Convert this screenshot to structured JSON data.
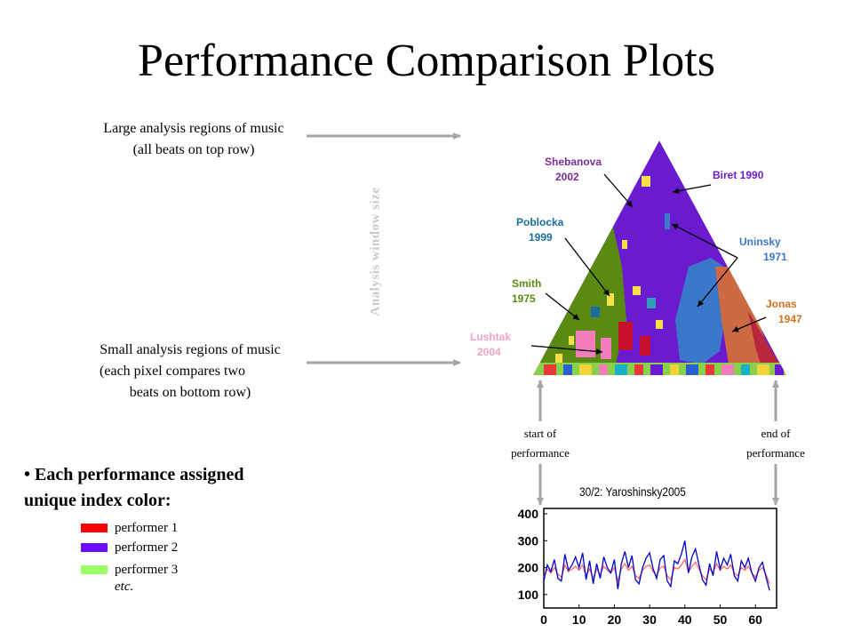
{
  "title": "Performance Comparison Plots",
  "left_descriptions": {
    "large_line1": "Large analysis regions of music",
    "large_line2": "(all beats on top row)",
    "small_line1": "Small analysis regions of music",
    "small_line2": "(each pixel compares two",
    "small_line3": "beats on bottom row)"
  },
  "axis_label": "Analysis window size",
  "performers": {
    "shebanova_name": "Shebanova",
    "shebanova_year": "2002",
    "biret": "Biret 1990",
    "poblocka_name": "Poblocka",
    "poblocka_year": "1999",
    "uninsky_name": "Uninsky",
    "uninsky_year": "1971",
    "smith_name": "Smith",
    "smith_year": "1975",
    "jonas_name": "Jonas",
    "jonas_year": "1947",
    "lushtak_name": "Lushtak",
    "lushtak_year": "2004"
  },
  "performer_colors": {
    "shebanova": "#7a2d96",
    "biret": "#6a1bd0",
    "poblocka": "#1a6e9e",
    "uninsky": "#3b78c9",
    "smith": "#5a8a12",
    "jonas": "#d2711c",
    "lushtak": "#f4a0c8"
  },
  "captions": {
    "start_line1": "start of",
    "start_line2": "performance",
    "end_line1": "end of",
    "end_line2": "performance"
  },
  "legend": {
    "heading_line1": "• Each performance assigned",
    "heading_line2": "unique index color:",
    "items": [
      {
        "label": "performer 1",
        "color": "#ff0000"
      },
      {
        "label": "performer 2",
        "color": "#6a0dff"
      },
      {
        "label": "performer 3",
        "color": "#99ff66"
      }
    ],
    "etc": "etc."
  },
  "chart_data": {
    "type": "line",
    "title": "30/2: Yaroshinsky2005",
    "xlabel": "",
    "ylabel": "",
    "xlim": [
      0,
      66
    ],
    "ylim": [
      50,
      420
    ],
    "x_ticks": [
      0,
      10,
      20,
      30,
      40,
      50,
      60
    ],
    "y_ticks": [
      100,
      200,
      300,
      400
    ],
    "grid": false,
    "series": [
      {
        "color": "#0000cc",
        "x": [
          0,
          1,
          2,
          3,
          4,
          5,
          6,
          7,
          8,
          9,
          10,
          11,
          12,
          13,
          14,
          15,
          16,
          17,
          18,
          19,
          20,
          21,
          22,
          23,
          24,
          25,
          26,
          27,
          28,
          29,
          30,
          31,
          32,
          33,
          34,
          35,
          36,
          37,
          38,
          39,
          40,
          41,
          42,
          43,
          44,
          45,
          46,
          47,
          48,
          49,
          50,
          51,
          52,
          53,
          54,
          55,
          56,
          57,
          58,
          59,
          60,
          61,
          62,
          63,
          64
        ],
        "values": [
          150,
          210,
          185,
          230,
          160,
          150,
          250,
          190,
          210,
          240,
          200,
          255,
          155,
          225,
          140,
          215,
          160,
          240,
          200,
          180,
          230,
          120,
          215,
          260,
          200,
          245,
          155,
          140,
          200,
          235,
          255,
          195,
          160,
          230,
          245,
          150,
          130,
          225,
          215,
          250,
          300,
          180,
          240,
          270,
          210,
          155,
          135,
          215,
          170,
          260,
          195,
          235,
          210,
          250,
          170,
          150,
          225,
          200,
          235,
          180,
          150,
          200,
          220,
          165,
          115
        ]
      },
      {
        "color": "#ff6666",
        "x": [
          0,
          1,
          2,
          3,
          4,
          5,
          6,
          7,
          8,
          9,
          10,
          11,
          12,
          13,
          14,
          15,
          16,
          17,
          18,
          19,
          20,
          21,
          22,
          23,
          24,
          25,
          26,
          27,
          28,
          29,
          30,
          31,
          32,
          33,
          34,
          35,
          36,
          37,
          38,
          39,
          40,
          41,
          42,
          43,
          44,
          45,
          46,
          47,
          48,
          49,
          50,
          51,
          52,
          53,
          54,
          55,
          56,
          57,
          58,
          59,
          60,
          61,
          62,
          63,
          64
        ],
        "values": [
          165,
          195,
          180,
          200,
          175,
          165,
          210,
          185,
          195,
          205,
          190,
          210,
          170,
          195,
          160,
          195,
          175,
          205,
          190,
          180,
          200,
          150,
          195,
          215,
          190,
          205,
          170,
          160,
          190,
          205,
          210,
          185,
          170,
          200,
          205,
          170,
          155,
          200,
          195,
          210,
          230,
          185,
          205,
          220,
          195,
          170,
          155,
          195,
          180,
          215,
          190,
          205,
          195,
          210,
          180,
          170,
          200,
          190,
          205,
          180,
          165,
          190,
          200,
          175,
          140
        ]
      }
    ]
  }
}
